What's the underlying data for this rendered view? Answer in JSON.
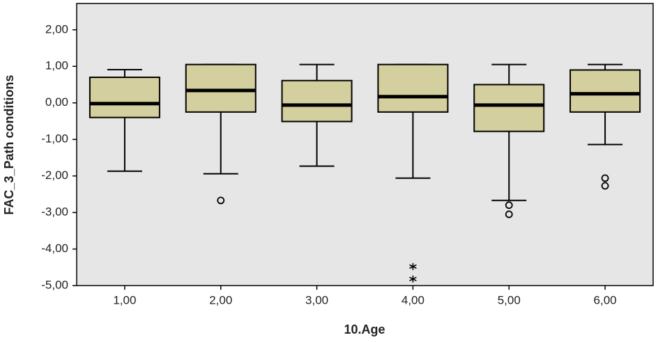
{
  "chart_data": {
    "type": "box",
    "x_label": "10.Age",
    "y_label": "FAC_3_Path conditions",
    "categories": [
      "1,00",
      "2,00",
      "3,00",
      "4,00",
      "5,00",
      "6,00"
    ],
    "color": "#d4cf9e",
    "ylim": [
      -5,
      2.72
    ],
    "yticks": [
      {
        "value": 2,
        "label": "2,00"
      },
      {
        "value": 1,
        "label": "1,00"
      },
      {
        "value": 0,
        "label": "0,00"
      },
      {
        "value": -1,
        "label": "-1,00"
      },
      {
        "value": -2,
        "label": "-2,00"
      },
      {
        "value": -3,
        "label": "-3,00"
      },
      {
        "value": -4,
        "label": "-4,00"
      },
      {
        "value": -5,
        "label": "-5,00"
      }
    ],
    "boxes": [
      {
        "whisker_low": -1.87,
        "q1": -0.4,
        "median": -0.02,
        "q3": 0.7,
        "whisker_high": 0.91,
        "outliers": [],
        "extremes": []
      },
      {
        "whisker_low": -1.94,
        "q1": -0.25,
        "median": 0.34,
        "q3": 1.05,
        "whisker_high": 1.05,
        "outliers": [
          -2.67
        ],
        "extremes": []
      },
      {
        "whisker_low": -1.73,
        "q1": -0.51,
        "median": -0.06,
        "q3": 0.61,
        "whisker_high": 1.05,
        "outliers": [],
        "extremes": []
      },
      {
        "whisker_low": -2.06,
        "q1": -0.25,
        "median": 0.17,
        "q3": 1.05,
        "whisker_high": 1.05,
        "outliers": [],
        "extremes": [
          -4.48,
          -4.82
        ]
      },
      {
        "whisker_low": -2.67,
        "q1": -0.78,
        "median": -0.06,
        "q3": 0.5,
        "whisker_high": 1.05,
        "outliers": [
          -2.8,
          -3.05
        ],
        "extremes": []
      },
      {
        "whisker_low": -1.14,
        "q1": -0.25,
        "median": 0.25,
        "q3": 0.9,
        "whisker_high": 1.05,
        "outliers": [
          -2.06,
          -2.27
        ],
        "extremes": []
      }
    ]
  }
}
